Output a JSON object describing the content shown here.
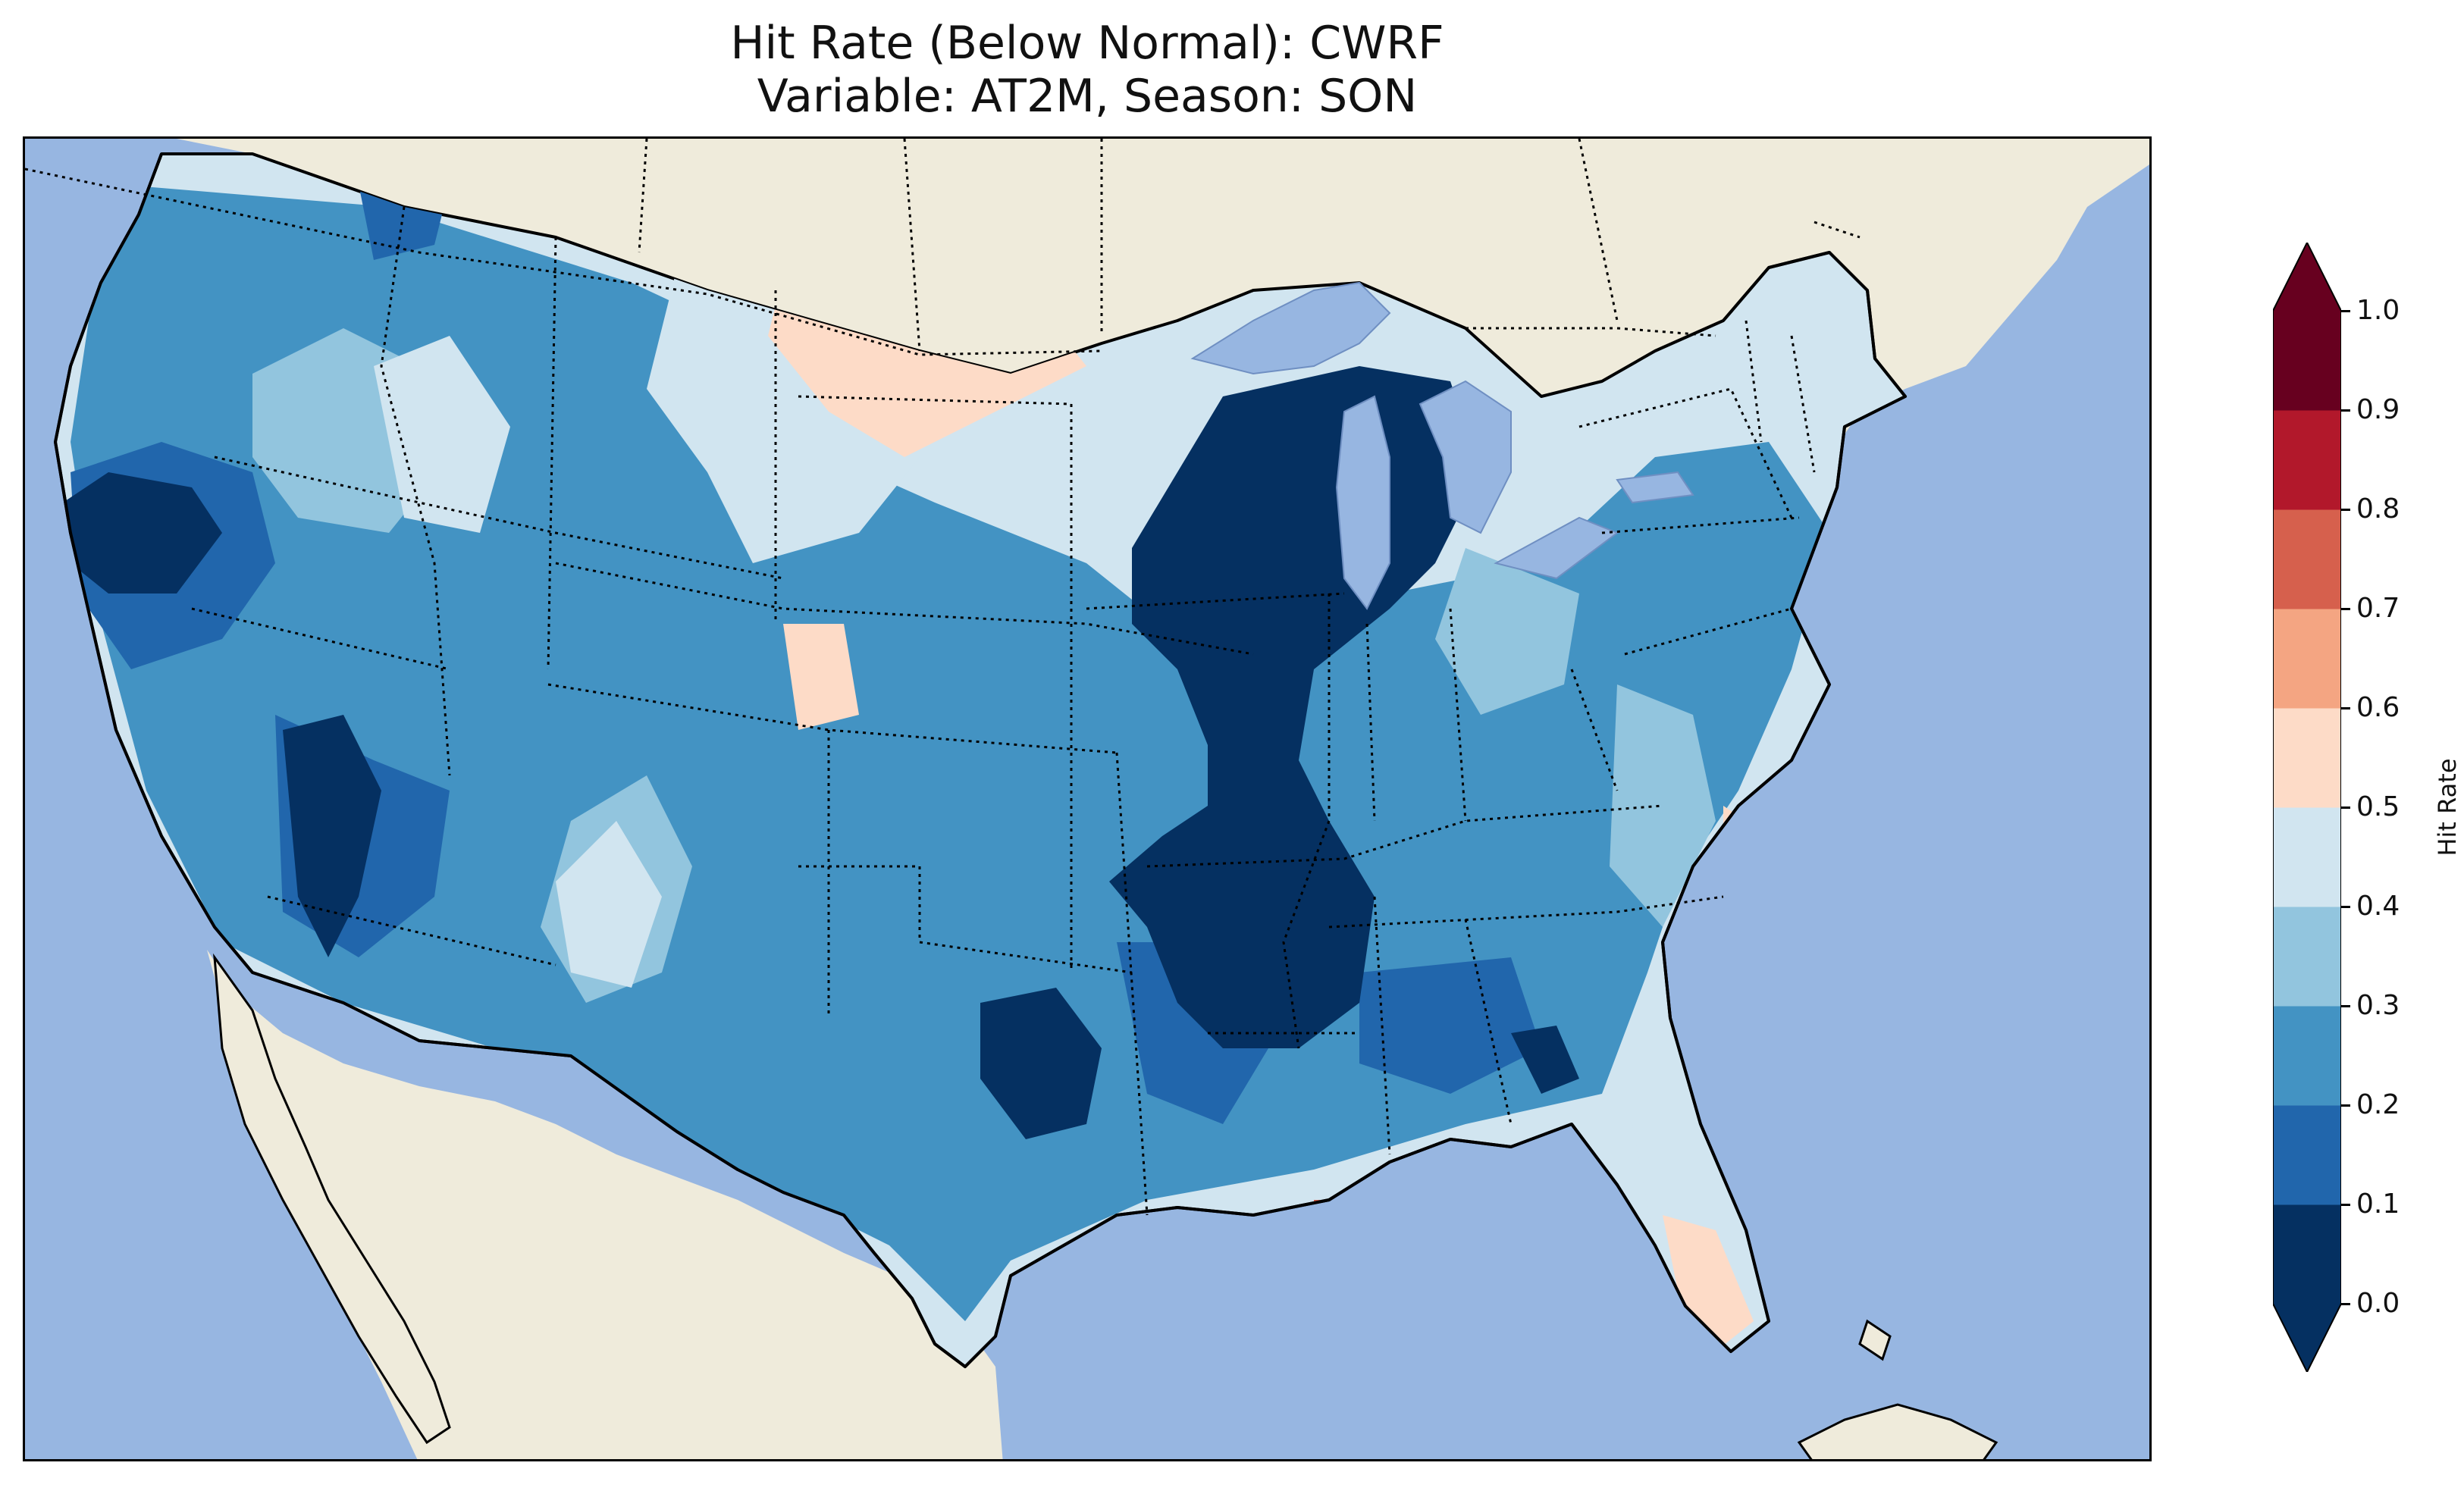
{
  "title": {
    "line1": "Hit Rate (Below Normal): CWRF",
    "line2": "Variable: AT2M, Season: SON"
  },
  "colors": {
    "ocean": "#97b6e1",
    "land": "#efebdb",
    "state_border": "#000000",
    "coastline": "#000000"
  },
  "colorbar": {
    "label": "Hit Rate",
    "ticks": [
      "0.0",
      "0.1",
      "0.2",
      "0.3",
      "0.4",
      "0.5",
      "0.6",
      "0.7",
      "0.8",
      "0.9",
      "1.0"
    ],
    "bins": [
      {
        "range": [
          0.0,
          0.1
        ],
        "color": "#053061"
      },
      {
        "range": [
          0.1,
          0.2
        ],
        "color": "#2166ac"
      },
      {
        "range": [
          0.2,
          0.3
        ],
        "color": "#4393c3"
      },
      {
        "range": [
          0.3,
          0.4
        ],
        "color": "#92c5de"
      },
      {
        "range": [
          0.4,
          0.5
        ],
        "color": "#d1e5f0"
      },
      {
        "range": [
          0.5,
          0.6
        ],
        "color": "#fddbc7"
      },
      {
        "range": [
          0.6,
          0.7
        ],
        "color": "#f4a582"
      },
      {
        "range": [
          0.7,
          0.8
        ],
        "color": "#d6604d"
      },
      {
        "range": [
          0.8,
          0.9
        ],
        "color": "#b2182b"
      },
      {
        "range": [
          0.9,
          1.0
        ],
        "color": "#67001f"
      }
    ],
    "extend_low_color": "#053061",
    "extend_high_color": "#67001f"
  }
}
